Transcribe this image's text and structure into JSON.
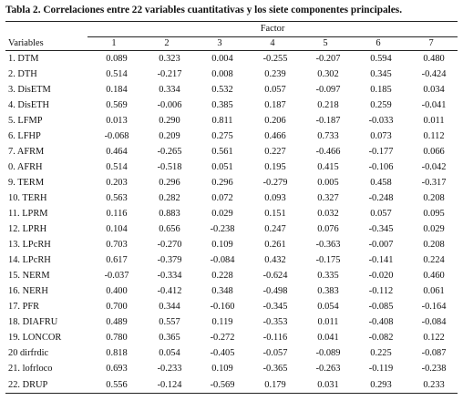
{
  "caption": "Tabla 2. Correlaciones entre 22 variables cuantitativas y los siete componentes principales.",
  "header": {
    "factor_label": "Factor",
    "variables_label": "Variables",
    "columns": [
      "1",
      "2",
      "3",
      "4",
      "5",
      "6",
      "7"
    ]
  },
  "rows": [
    {
      "label": "1.  DTM",
      "values": [
        "0.089",
        "0.323",
        "0.004",
        "-0.255",
        "-0.207",
        "0.594",
        "0.480"
      ]
    },
    {
      "label": "2.  DTH",
      "values": [
        "0.514",
        "-0.217",
        "0.008",
        "0.239",
        "0.302",
        "0.345",
        "-0.424"
      ]
    },
    {
      "label": "3.  DisETM",
      "values": [
        "0.184",
        "0.334",
        "0.532",
        "0.057",
        "-0.097",
        "0.185",
        "0.034"
      ]
    },
    {
      "label": "4.  DisETH",
      "values": [
        "0.569",
        "-0.006",
        "0.385",
        "0.187",
        "0.218",
        "0.259",
        "-0.041"
      ]
    },
    {
      "label": "5.  LFMP",
      "values": [
        "0.013",
        "0.290",
        "0.811",
        "0.206",
        "-0.187",
        "-0.033",
        "0.011"
      ]
    },
    {
      "label": "6.  LFHP",
      "values": [
        "-0.068",
        "0.209",
        "0.275",
        "0.466",
        "0.733",
        "0.073",
        "0.112"
      ]
    },
    {
      "label": "7.  AFRM",
      "values": [
        "0.464",
        "-0.265",
        "0.561",
        "0.227",
        "-0.466",
        "-0.177",
        "0.066"
      ]
    },
    {
      "label": "0.  AFRH",
      "values": [
        "0.514",
        "-0.518",
        "0.051",
        "0.195",
        "0.415",
        "-0.106",
        "-0.042"
      ]
    },
    {
      "label": "9.  TERM",
      "values": [
        "0.203",
        "0.296",
        "0.296",
        "-0.279",
        "0.005",
        "0.458",
        "-0.317"
      ]
    },
    {
      "label": "10. TERH",
      "values": [
        "0.563",
        "0.282",
        "0.072",
        "0.093",
        "0.327",
        "-0.248",
        "0.208"
      ]
    },
    {
      "label": "11. LPRM",
      "values": [
        "0.116",
        "0.883",
        "0.029",
        "0.151",
        "0.032",
        "0.057",
        "0.095"
      ]
    },
    {
      "label": "12. LPRH",
      "values": [
        "0.104",
        "0.656",
        "-0.238",
        "0.247",
        "0.076",
        "-0.345",
        "0.029"
      ]
    },
    {
      "label": "13. LPcRH",
      "values": [
        "0.703",
        "-0.270",
        "0.109",
        "0.261",
        "-0.363",
        "-0.007",
        "0.208"
      ]
    },
    {
      "label": "14. LPcRH",
      "values": [
        "0.617",
        "-0.379",
        "-0.084",
        "0.432",
        "-0.175",
        "-0.141",
        "0.224"
      ]
    },
    {
      "label": "15. NERM",
      "values": [
        "-0.037",
        "-0.334",
        "0.228",
        "-0.624",
        "0.335",
        "-0.020",
        "0.460"
      ]
    },
    {
      "label": "16. NERH",
      "values": [
        "0.400",
        "-0.412",
        "0.348",
        "-0.498",
        "0.383",
        "-0.112",
        "0.061"
      ]
    },
    {
      "label": "17. PFR",
      "values": [
        "0.700",
        "0.344",
        "-0.160",
        "-0.345",
        "0.054",
        "-0.085",
        "-0.164"
      ]
    },
    {
      "label": "18. DIAFRU",
      "values": [
        "0.489",
        "0.557",
        "0.119",
        "-0.353",
        "0.011",
        "-0.408",
        "-0.084"
      ]
    },
    {
      "label": "19. LONCOR",
      "values": [
        "0.780",
        "0.365",
        "-0.272",
        "-0.116",
        "0.041",
        "-0.082",
        "0.122"
      ]
    },
    {
      "label": "20 dirfrdic",
      "values": [
        "0.818",
        "0.054",
        "-0.405",
        "-0.057",
        "-0.089",
        "0.225",
        "-0.087"
      ]
    },
    {
      "label": "21. lofrloco",
      "values": [
        "0.693",
        "-0.233",
        "0.109",
        "-0.365",
        "-0.263",
        "-0.119",
        "-0.238"
      ]
    },
    {
      "label": "22. DRUP",
      "values": [
        "0.556",
        "-0.124",
        "-0.569",
        "0.179",
        "0.031",
        "0.293",
        "0.233"
      ]
    }
  ]
}
